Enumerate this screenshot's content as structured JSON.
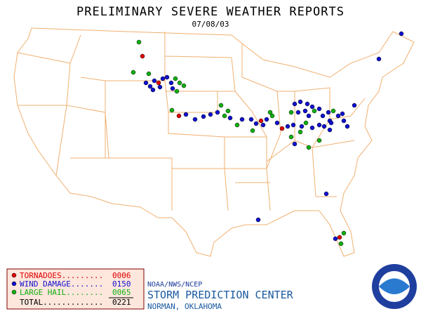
{
  "header": {
    "title": "PRELIMINARY SEVERE WEATHER REPORTS",
    "date": "07/08/03"
  },
  "legend": {
    "items": [
      {
        "label": "TORNADOES.........",
        "count": "0006"
      },
      {
        "label": "WIND DAMAGE.......",
        "count": "0150"
      },
      {
        "label": "LARGE HAIL........",
        "count": "0065"
      }
    ],
    "total_label": "TOTAL.............",
    "total": "0221"
  },
  "footer": {
    "agency": "NOAA/NWS/NCEP",
    "center": "STORM PREDICTION CENTER",
    "location": "NORMAN, OKLAHOMA"
  }
}
